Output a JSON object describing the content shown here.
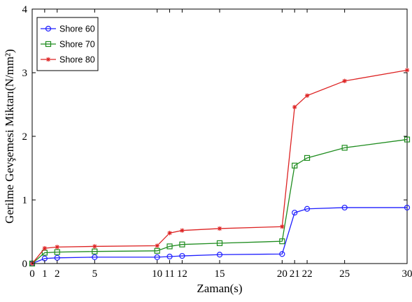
{
  "chart_data": {
    "type": "line",
    "xlabel": "Zaman(s)",
    "ylabel": "Gerilme Gevşemesi Miktarı(N/mm²)",
    "xlim": [
      0,
      30
    ],
    "ylim": [
      0,
      4
    ],
    "x_ticks": [
      0,
      1,
      2,
      5,
      10,
      11,
      12,
      15,
      20,
      21,
      22,
      25,
      30
    ],
    "x_tick_labels": [
      "0",
      "1",
      "2",
      "5",
      "10",
      "11",
      "12",
      "15",
      "20",
      "21",
      "22",
      "25",
      "30"
    ],
    "y_ticks": [
      0,
      1,
      2,
      3,
      4
    ],
    "y_tick_labels": [
      "0",
      "1",
      "2",
      "3",
      "4"
    ],
    "grid": false,
    "legend_position": "top-left",
    "x": [
      0,
      1,
      2,
      5,
      10,
      11,
      12,
      15,
      20,
      21,
      22,
      25,
      30
    ],
    "series": [
      {
        "name": "Shore 60",
        "color": "#1f1fff",
        "marker": "circle",
        "values": [
          0.0,
          0.08,
          0.09,
          0.1,
          0.1,
          0.11,
          0.12,
          0.14,
          0.15,
          0.8,
          0.86,
          0.88,
          0.88
        ]
      },
      {
        "name": "Shore 70",
        "color": "#1e8c1e",
        "marker": "square",
        "values": [
          0.0,
          0.17,
          0.18,
          0.19,
          0.2,
          0.27,
          0.3,
          0.32,
          0.35,
          1.54,
          1.66,
          1.82,
          1.95
        ]
      },
      {
        "name": "Shore 80",
        "color": "#dd2222",
        "marker": "star",
        "values": [
          0.0,
          0.24,
          0.26,
          0.27,
          0.28,
          0.48,
          0.52,
          0.55,
          0.58,
          2.46,
          2.64,
          2.87,
          3.04
        ]
      }
    ]
  }
}
